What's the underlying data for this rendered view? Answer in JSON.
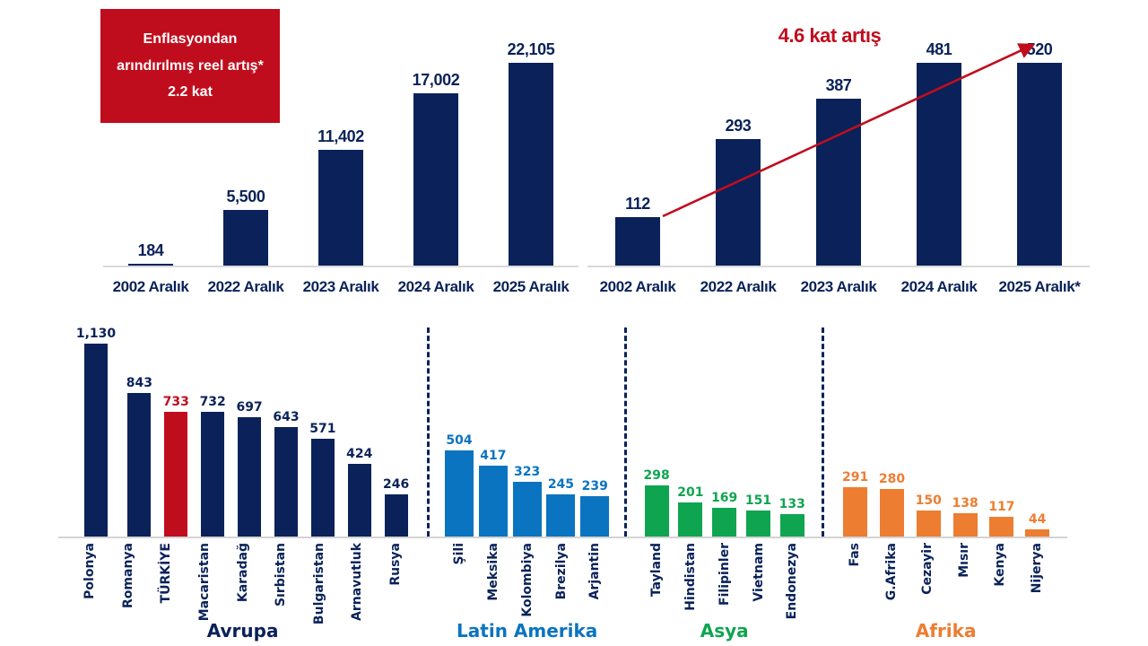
{
  "colors": {
    "navy": "#0A2259",
    "red": "#C00D1E",
    "blue": "#0B74C0",
    "green": "#0FA550",
    "orange": "#ED7D31",
    "axis_gray": "#D9D9D9"
  },
  "annotation_box": {
    "line1": "Enflasyondan",
    "line2": "arındırılmış reel artış*",
    "line3": "2.2 kat"
  },
  "chart_data": [
    {
      "id": "nominal-wage-chart",
      "type": "bar",
      "categories": [
        "2002 Aralık",
        "2022 Aralık",
        "2023 Aralık",
        "2024 Aralık",
        "2025 Aralık"
      ],
      "values": [
        184,
        5500,
        11402,
        17002,
        22105
      ],
      "labels": [
        "184",
        "5,500",
        "11,402",
        "17,002",
        "22,105"
      ],
      "bar_color": "#0A2259",
      "ylim": [
        0,
        22105
      ],
      "grid": false,
      "annotation": "Enflasyondan arındırılmış reel artış* 2.2 kat"
    },
    {
      "id": "usd-wage-chart",
      "type": "bar",
      "categories": [
        "2002 Aralık",
        "2022 Aralık",
        "2023 Aralık",
        "2024 Aralık",
        "2025 Aralık*"
      ],
      "values": [
        112,
        293,
        387,
        481,
        520
      ],
      "labels": [
        "112",
        "293",
        "387",
        "481",
        "520"
      ],
      "bar_color": "#0A2259",
      "ylim": [
        0,
        520
      ],
      "grid": false,
      "trend_annotation": "4.6 kat artış",
      "trend_color": "#C00D1E"
    },
    {
      "id": "country-comparison-chart",
      "type": "bar",
      "ylim": [
        0,
        1130
      ],
      "grid": false,
      "groups": [
        {
          "name": "Avrupa",
          "color": "#0A2259",
          "items": [
            {
              "label": "Polonya",
              "value": 1130,
              "display": "1,130"
            },
            {
              "label": "Romanya",
              "value": 843,
              "display": "843"
            },
            {
              "label": "TÜRKİYE",
              "value": 733,
              "display": "733",
              "highlight_color": "#C00D1E"
            },
            {
              "label": "Macaristan",
              "value": 732,
              "display": "732"
            },
            {
              "label": "Karadağ",
              "value": 697,
              "display": "697"
            },
            {
              "label": "Sırbistan",
              "value": 643,
              "display": "643"
            },
            {
              "label": "Bulgaristan",
              "value": 571,
              "display": "571"
            },
            {
              "label": "Arnavutluk",
              "value": 424,
              "display": "424"
            },
            {
              "label": "Rusya",
              "value": 246,
              "display": "246"
            }
          ]
        },
        {
          "name": "Latin Amerika",
          "color": "#0B74C0",
          "items": [
            {
              "label": "Şili",
              "value": 504,
              "display": "504"
            },
            {
              "label": "Meksika",
              "value": 417,
              "display": "417"
            },
            {
              "label": "Kolombiya",
              "value": 323,
              "display": "323"
            },
            {
              "label": "Brezilya",
              "value": 245,
              "display": "245"
            },
            {
              "label": "Arjantin",
              "value": 239,
              "display": "239"
            }
          ]
        },
        {
          "name": "Asya",
          "color": "#0FA550",
          "items": [
            {
              "label": "Tayland",
              "value": 298,
              "display": "298"
            },
            {
              "label": "Hindistan",
              "value": 201,
              "display": "201"
            },
            {
              "label": "Filipinler",
              "value": 169,
              "display": "169"
            },
            {
              "label": "Vietnam",
              "value": 151,
              "display": "151"
            },
            {
              "label": "Endonezya",
              "value": 133,
              "display": "133"
            }
          ]
        },
        {
          "name": "Afrika",
          "color": "#ED7D31",
          "items": [
            {
              "label": "Fas",
              "value": 291,
              "display": "291"
            },
            {
              "label": "G.Afrika",
              "value": 280,
              "display": "280"
            },
            {
              "label": "Cezayir",
              "value": 150,
              "display": "150"
            },
            {
              "label": "Mısır",
              "value": 138,
              "display": "138"
            },
            {
              "label": "Kenya",
              "value": 117,
              "display": "117"
            },
            {
              "label": "Nijerya",
              "value": 44,
              "display": "44"
            }
          ]
        }
      ]
    }
  ]
}
